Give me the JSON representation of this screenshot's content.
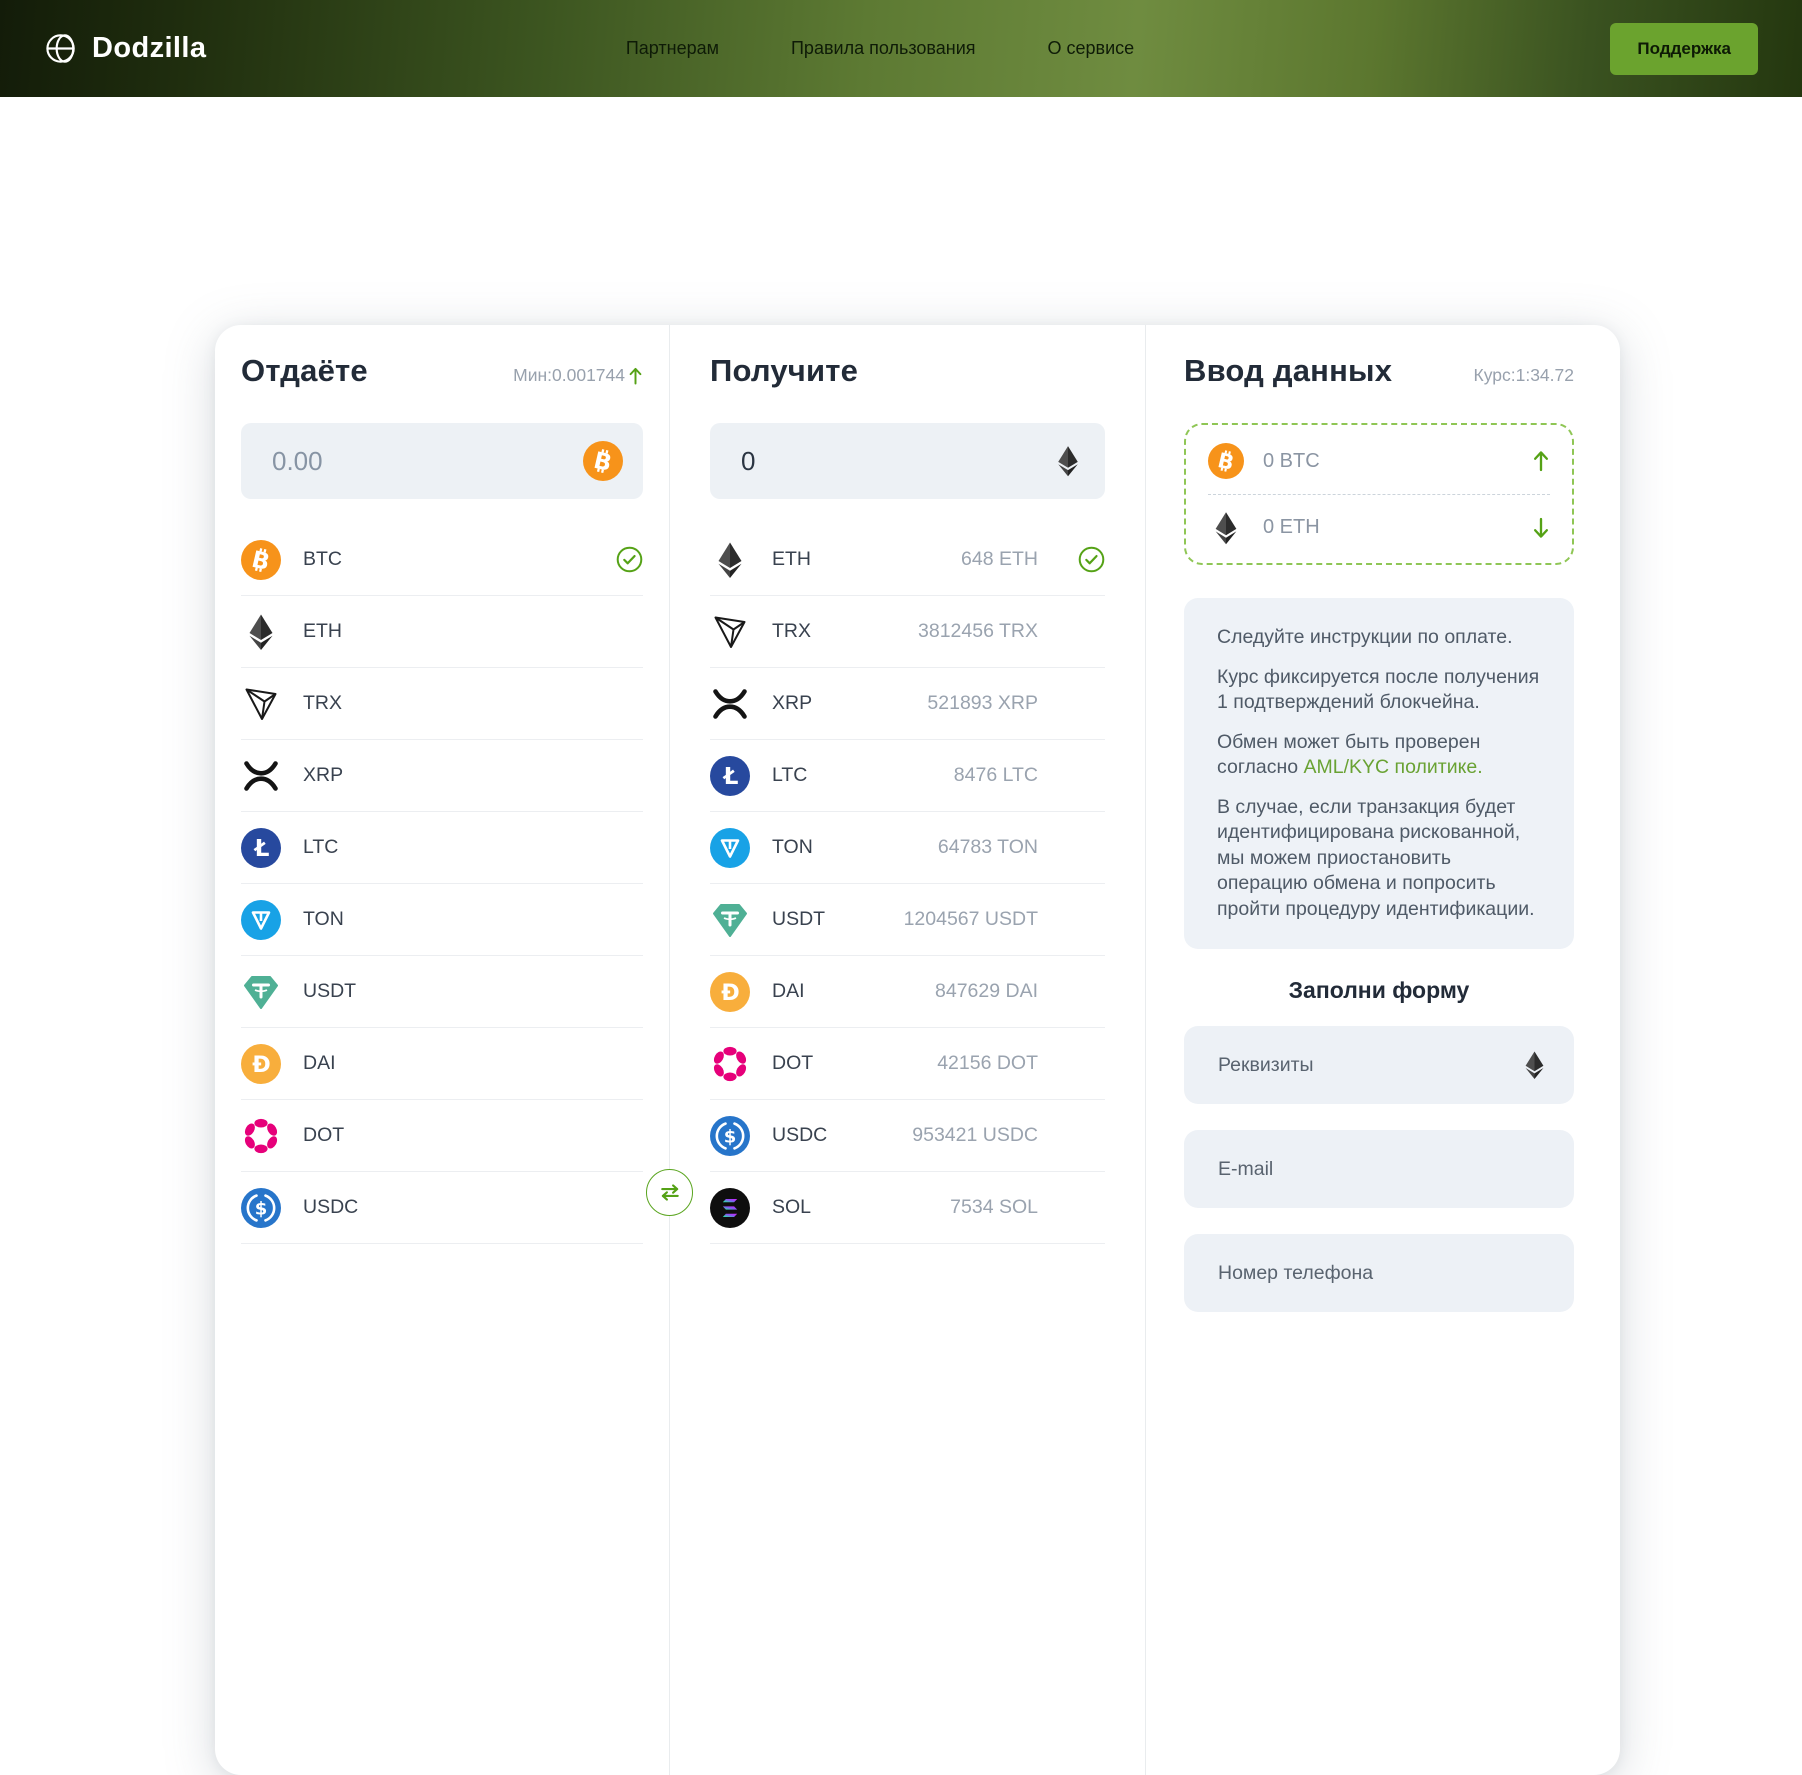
{
  "header": {
    "logo_text": "Dodzilla",
    "nav": [
      {
        "label": "Партнерам"
      },
      {
        "label": "Правила пользования"
      },
      {
        "label": "О сервисе"
      }
    ],
    "support_button": "Поддержка"
  },
  "give": {
    "title": "Отдаёте",
    "min_label": "Мин:0.001744",
    "amount": "0.00",
    "input_icon": "btc",
    "coins": [
      {
        "icon": "btc",
        "label": "BTC",
        "selected": true
      },
      {
        "icon": "eth",
        "label": "ETH"
      },
      {
        "icon": "trx",
        "label": "TRX"
      },
      {
        "icon": "xrp",
        "label": "XRP"
      },
      {
        "icon": "ltc",
        "label": "LTC"
      },
      {
        "icon": "ton",
        "label": "TON"
      },
      {
        "icon": "usdt",
        "label": "USDT"
      },
      {
        "icon": "dai",
        "label": "DAI"
      },
      {
        "icon": "dot",
        "label": "DOT"
      },
      {
        "icon": "usdc",
        "label": "USDC"
      }
    ]
  },
  "receive": {
    "title": "Получите",
    "amount": "0",
    "input_icon": "eth",
    "coins": [
      {
        "icon": "eth",
        "label": "ETH",
        "amount": "648 ETH",
        "selected": true
      },
      {
        "icon": "trx",
        "label": "TRX",
        "amount": "3812456 TRX"
      },
      {
        "icon": "xrp",
        "label": "XRP",
        "amount": "521893 XRP"
      },
      {
        "icon": "ltc",
        "label": "LTC",
        "amount": "8476 LTC"
      },
      {
        "icon": "ton",
        "label": "TON",
        "amount": "64783 TON"
      },
      {
        "icon": "usdt",
        "label": "USDT",
        "amount": "1204567 USDT"
      },
      {
        "icon": "dai",
        "label": "DAI",
        "amount": "847629 DAI"
      },
      {
        "icon": "dot",
        "label": "DOT",
        "amount": "42156 DOT"
      },
      {
        "icon": "usdc",
        "label": "USDC",
        "amount": "953421 USDC"
      },
      {
        "icon": "sol",
        "label": "SOL",
        "amount": "7534 SOL"
      }
    ]
  },
  "data_entry": {
    "title": "Ввод данных",
    "rate_label": "Курс:1:34.72",
    "summary": [
      {
        "icon": "btc",
        "amount": "0 BTC",
        "dir": "arrow-up"
      },
      {
        "icon": "eth",
        "amount": "0 ETH",
        "dir": "arrow-down"
      }
    ],
    "instructions": {
      "p1": "Следуйте инструкции по оплате.",
      "p2": "Курс фиксируется после получения 1 подтверждений блокчейна.",
      "p3_prefix": "Обмен может быть проверен согласно",
      "p3_link": "AML/KYC политике.",
      "p4": "В случае, если транзакция будет идентифицирована рискованной, мы можем приостановить операцию обмена и попросить пройти процедуру идентификации."
    },
    "form_title": "Заполни форму",
    "fields": [
      {
        "placeholder": "Реквизиты",
        "icon": "eth"
      },
      {
        "placeholder": "E-mail"
      },
      {
        "placeholder": "Номер телефона"
      }
    ]
  },
  "icons": {
    "logo": "dodzilla-logo",
    "min_trend": "arrow-up",
    "swap": "swap-arrows",
    "selected_check": "check-circle"
  },
  "colors": {
    "accent_green": "#57a51c",
    "button_green": "#6ba32e",
    "dashed_border_green": "#8fc655",
    "link_green": "#69a233",
    "btc_orange": "#f7931a",
    "text_dark": "#222b38",
    "text_muted": "#98a1ad"
  }
}
